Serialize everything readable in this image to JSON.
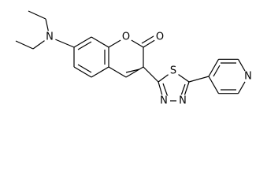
{
  "atoms": [
    "N",
    "O",
    "O",
    "S",
    "N",
    "N",
    "N"
  ]
}
